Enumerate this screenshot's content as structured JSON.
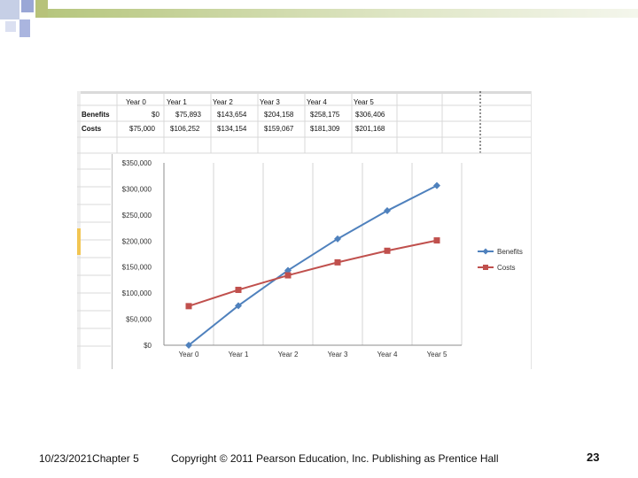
{
  "slide": {
    "date_chapter": "10/23/2021Chapter 5",
    "copyright": "Copyright © 2011 Pearson Education, Inc. Publishing as Prentice Hall",
    "page_number": "23"
  },
  "table": {
    "headers": [
      "Year 0",
      "Year 1",
      "Year 2",
      "Year 3",
      "Year 4",
      "Year 5"
    ],
    "rows": [
      {
        "label": "Benefits",
        "values": [
          "$0",
          "$75,893",
          "$143,654",
          "$204,158",
          "$258,175",
          "$306,406"
        ]
      },
      {
        "label": "Costs",
        "values": [
          "$75,000",
          "$106,252",
          "$134,154",
          "$159,067",
          "$181,309",
          "$201,168"
        ]
      }
    ]
  },
  "chart_data": {
    "type": "line",
    "categories": [
      "Year 0",
      "Year 1",
      "Year 2",
      "Year 3",
      "Year 4",
      "Year 5"
    ],
    "series": [
      {
        "name": "Benefits",
        "values": [
          0,
          75893,
          143654,
          204158,
          258175,
          306406
        ],
        "color": "#4f81bd",
        "marker": "diamond"
      },
      {
        "name": "Costs",
        "values": [
          75000,
          106252,
          134154,
          159067,
          181309,
          201168
        ],
        "color": "#c0504d",
        "marker": "square"
      }
    ],
    "yticks": [
      "$0",
      "$50,000",
      "$100,000",
      "$150,000",
      "$200,000",
      "$250,000",
      "$300,000",
      "$350,000"
    ],
    "ylim": [
      0,
      350000
    ],
    "grid": "vertical",
    "legend": "right"
  }
}
